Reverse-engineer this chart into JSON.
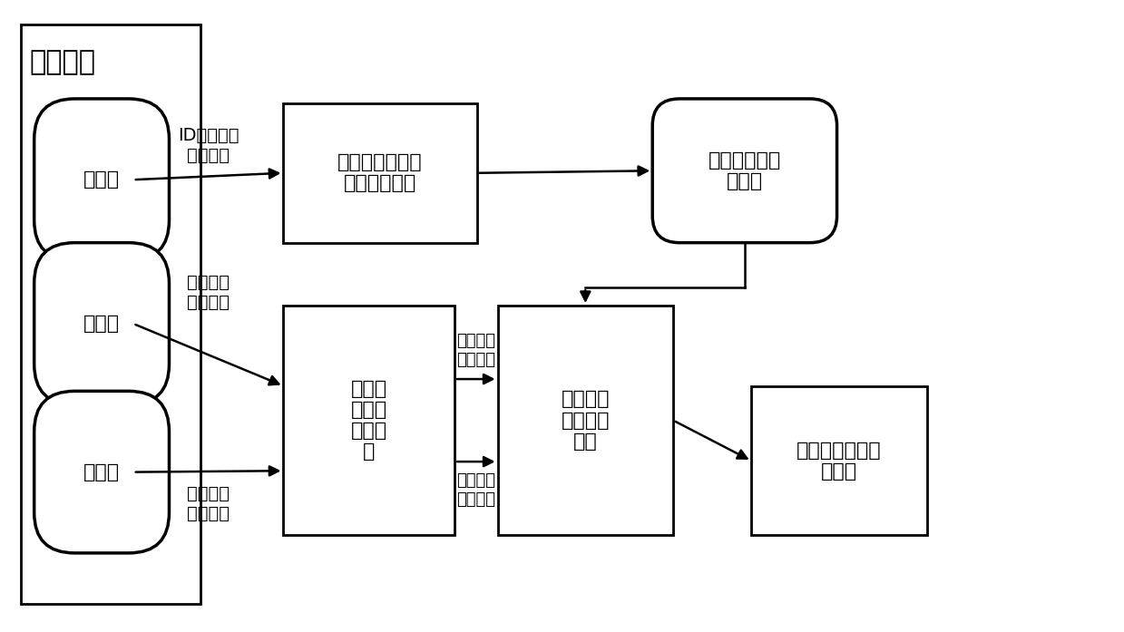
{
  "bg_color": "#ffffff",
  "monitor_label": "监控系统",
  "config_label": "配置库",
  "realtime_label": "实时库",
  "history_label": "历史库",
  "rule_gen_label": "设备故障预警规\n则库生成工具",
  "rule_db_label": "设备故障预警\n规则库",
  "data_collect_label": "设备状\n态数据\n采集模\n块",
  "trend_anal_label": "设备故障\n趋势分析\n模块",
  "trend_show_label": "设备故障趋势展\n示模块",
  "arrow_label_1": "ID、类型等\n配置信息",
  "arrow_label_2": "设备状态\n实时数据",
  "arrow_label_3": "设备状态\n历史数据",
  "arrow_label_4": "设备状态\n实时数据",
  "arrow_label_5": "设备状态\n历史数据",
  "font_size_title": 22,
  "font_size_box": 16,
  "font_size_arrow": 14,
  "font_size_small_arrow": 13
}
